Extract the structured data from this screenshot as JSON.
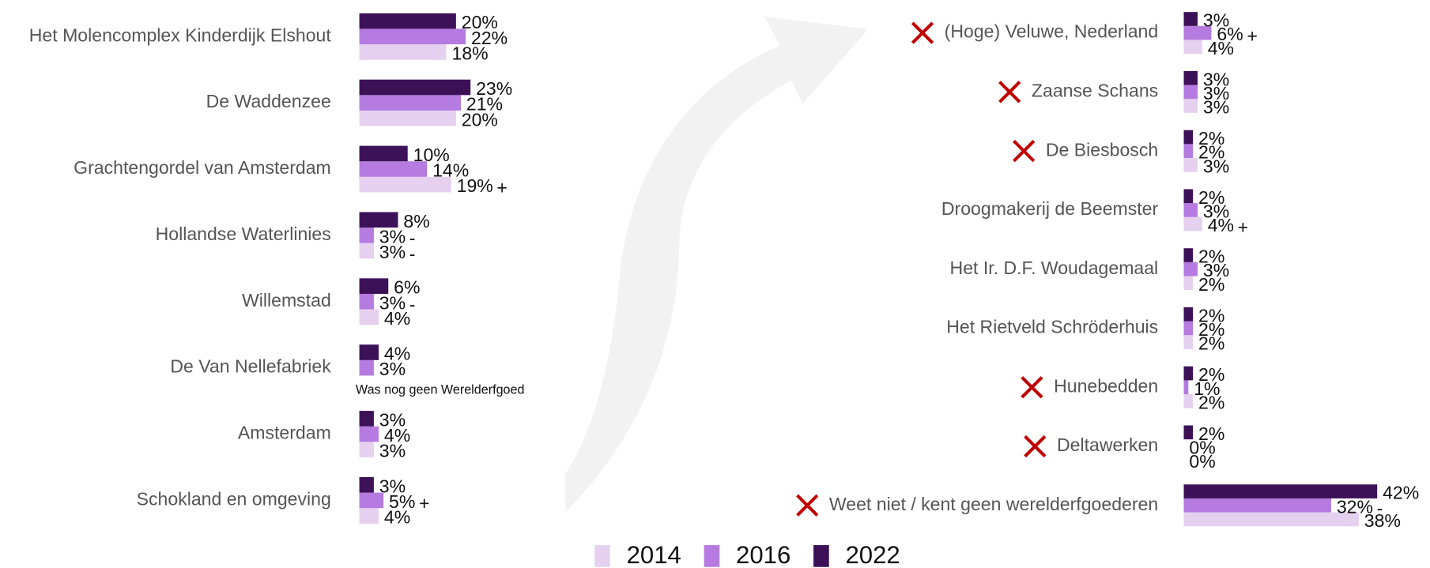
{
  "chart_data": [
    {
      "type": "bar",
      "orientation": "horizontal",
      "categories": [
        "Het Molencomplex Kinderdijk Elshout",
        "De Waddenzee",
        "Grachtengordel van Amsterdam",
        "Hollandse Waterlinies",
        "Willemstad",
        "De Van Nellefabriek",
        "Amsterdam",
        "Schokland en omgeving"
      ],
      "crossed": [
        false,
        false,
        false,
        false,
        false,
        false,
        false,
        false
      ],
      "series": [
        {
          "name": "2014",
          "color": "#e6d0f0",
          "values": [
            18,
            20,
            19,
            3,
            4,
            null,
            3,
            4
          ],
          "value_labels": [
            "18%",
            "20%",
            "19%",
            "3%",
            "4%",
            null,
            "3%",
            "4%"
          ],
          "sig": [
            null,
            null,
            "+",
            "-",
            null,
            null,
            null,
            null
          ],
          "notes": [
            null,
            null,
            null,
            null,
            null,
            "Was nog geen Werelderfgoed",
            null,
            null
          ]
        },
        {
          "name": "2016",
          "color": "#b57be0",
          "values": [
            22,
            21,
            14,
            3,
            3,
            3,
            4,
            5
          ],
          "value_labels": [
            "22%",
            "21%",
            "14%",
            "3%",
            "3%",
            "3%",
            "4%",
            "5%"
          ],
          "sig": [
            null,
            null,
            null,
            "-",
            "-",
            null,
            null,
            "+"
          ]
        },
        {
          "name": "2022",
          "color": "#3d1157",
          "values": [
            20,
            23,
            10,
            8,
            6,
            4,
            3,
            3
          ],
          "value_labels": [
            "20%",
            "23%",
            "10%",
            "8%",
            "6%",
            "4%",
            "3%",
            "3%"
          ],
          "sig": [
            null,
            null,
            null,
            null,
            null,
            null,
            null,
            null
          ]
        }
      ]
    },
    {
      "type": "bar",
      "orientation": "horizontal",
      "categories": [
        "(Hoge) Veluwe, Nederland",
        "Zaanse Schans",
        "De Biesbosch",
        "Droogmakerij de Beemster",
        "Het Ir. D.F. Woudagemaal",
        "Het Rietveld Schröderhuis",
        "Hunebedden",
        "Deltawerken",
        "Weet niet / kent geen werelderfgoederen"
      ],
      "crossed": [
        true,
        true,
        true,
        false,
        false,
        false,
        true,
        true,
        true
      ],
      "series": [
        {
          "name": "2014",
          "color": "#e6d0f0",
          "values": [
            4,
            3,
            3,
            4,
            2,
            2,
            2,
            0,
            38
          ],
          "value_labels": [
            "4%",
            "3%",
            "3%",
            "4%",
            "2%",
            "2%",
            "2%",
            "0%",
            "38%"
          ],
          "sig": [
            null,
            null,
            null,
            "+",
            null,
            null,
            null,
            null,
            null
          ]
        },
        {
          "name": "2016",
          "color": "#b57be0",
          "values": [
            6,
            3,
            2,
            3,
            3,
            2,
            1,
            0,
            32
          ],
          "value_labels": [
            "6%",
            "3%",
            "2%",
            "3%",
            "3%",
            "2%",
            "1%",
            "0%",
            "32%"
          ],
          "sig": [
            "+",
            null,
            null,
            null,
            null,
            null,
            null,
            null,
            "-"
          ]
        },
        {
          "name": "2022",
          "color": "#3d1157",
          "values": [
            3,
            3,
            2,
            2,
            2,
            2,
            2,
            2,
            42
          ],
          "value_labels": [
            "3%",
            "3%",
            "2%",
            "2%",
            "2%",
            "2%",
            "2%",
            "2%",
            "42%"
          ],
          "sig": [
            null,
            null,
            null,
            null,
            null,
            null,
            null,
            null,
            null
          ]
        }
      ]
    }
  ]
}
